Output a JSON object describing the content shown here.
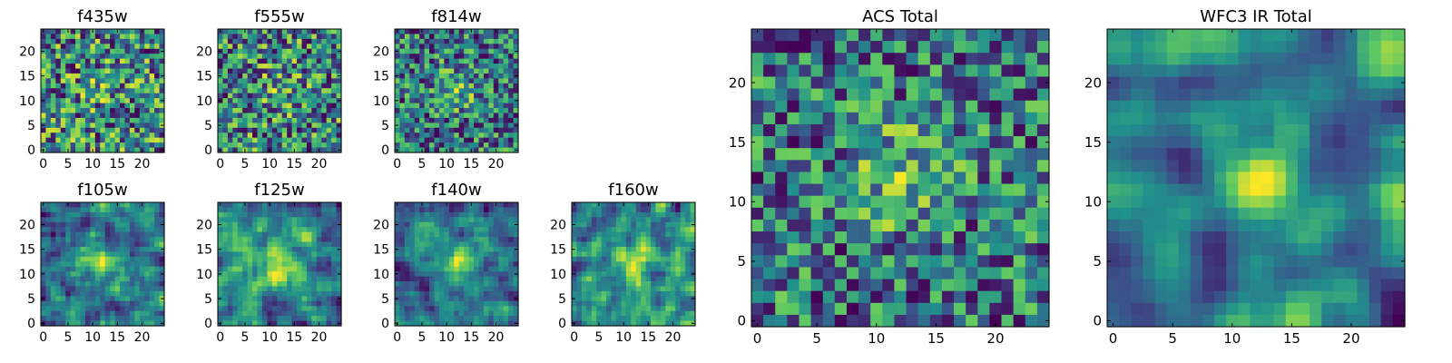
{
  "chart_data": [
    {
      "type": "heatmap",
      "title": "f435w",
      "xticks": [
        0,
        5,
        10,
        15,
        20
      ],
      "yticks": [
        0,
        5,
        10,
        15,
        20
      ],
      "xlim": [
        -0.5,
        24.5
      ],
      "ylim": [
        -0.5,
        24.5
      ],
      "grid": 25,
      "seed": 11,
      "blob": 0.1,
      "smooth": 0
    },
    {
      "type": "heatmap",
      "title": "f555w",
      "xticks": [
        0,
        5,
        10,
        15,
        20
      ],
      "yticks": [
        0,
        5,
        10,
        15,
        20
      ],
      "xlim": [
        -0.5,
        24.5
      ],
      "ylim": [
        -0.5,
        24.5
      ],
      "grid": 25,
      "seed": 23,
      "blob": 0.15,
      "smooth": 0
    },
    {
      "type": "heatmap",
      "title": "f814w",
      "xticks": [
        0,
        5,
        10,
        15,
        20
      ],
      "yticks": [
        0,
        5,
        10,
        15,
        20
      ],
      "xlim": [
        -0.5,
        24.5
      ],
      "ylim": [
        -0.5,
        24.5
      ],
      "grid": 25,
      "seed": 37,
      "blob": 0.25,
      "smooth": 0
    },
    {
      "type": "heatmap",
      "title": "f105w",
      "xticks": [
        0,
        5,
        10,
        15,
        20
      ],
      "yticks": [
        0,
        5,
        10,
        15,
        20
      ],
      "xlim": [
        -0.5,
        24.5
      ],
      "ylim": [
        -0.5,
        24.5
      ],
      "grid": 25,
      "seed": 41,
      "blob": 0.45,
      "smooth": 1
    },
    {
      "type": "heatmap",
      "title": "f125w",
      "xticks": [
        0,
        5,
        10,
        15,
        20
      ],
      "yticks": [
        0,
        5,
        10,
        15,
        20
      ],
      "xlim": [
        -0.5,
        24.5
      ],
      "ylim": [
        -0.5,
        24.5
      ],
      "grid": 25,
      "seed": 53,
      "blob": 0.4,
      "smooth": 1
    },
    {
      "type": "heatmap",
      "title": "f140w",
      "xticks": [
        0,
        5,
        10,
        15,
        20
      ],
      "yticks": [
        0,
        5,
        10,
        15,
        20
      ],
      "xlim": [
        -0.5,
        24.5
      ],
      "ylim": [
        -0.5,
        24.5
      ],
      "grid": 25,
      "seed": 67,
      "blob": 0.45,
      "smooth": 1
    },
    {
      "type": "heatmap",
      "title": "f160w",
      "xticks": [
        0,
        5,
        10,
        15,
        20
      ],
      "yticks": [
        0,
        5,
        10,
        15,
        20
      ],
      "xlim": [
        -0.5,
        24.5
      ],
      "ylim": [
        -0.5,
        24.5
      ],
      "grid": 25,
      "seed": 79,
      "blob": 0.4,
      "smooth": 1
    },
    {
      "type": "heatmap",
      "title": "ACS Total",
      "xticks": [
        0,
        5,
        10,
        15,
        20
      ],
      "yticks": [
        0,
        5,
        10,
        15,
        20
      ],
      "xlim": [
        -0.5,
        24.5
      ],
      "ylim": [
        -0.5,
        24.5
      ],
      "grid": 25,
      "seed": 97,
      "blob": 0.3,
      "smooth": 0
    },
    {
      "type": "heatmap",
      "title": "WFC3 IR Total",
      "xticks": [
        0,
        5,
        10,
        15,
        20
      ],
      "yticks": [
        0,
        5,
        10,
        15,
        20
      ],
      "xlim": [
        -0.5,
        24.5
      ],
      "ylim": [
        -0.5,
        24.5
      ],
      "grid": 25,
      "seed": 103,
      "blob": 0.55,
      "smooth": 2
    }
  ],
  "colormap": [
    "#440154",
    "#3b528b",
    "#21918c",
    "#5ec962",
    "#fde725"
  ]
}
